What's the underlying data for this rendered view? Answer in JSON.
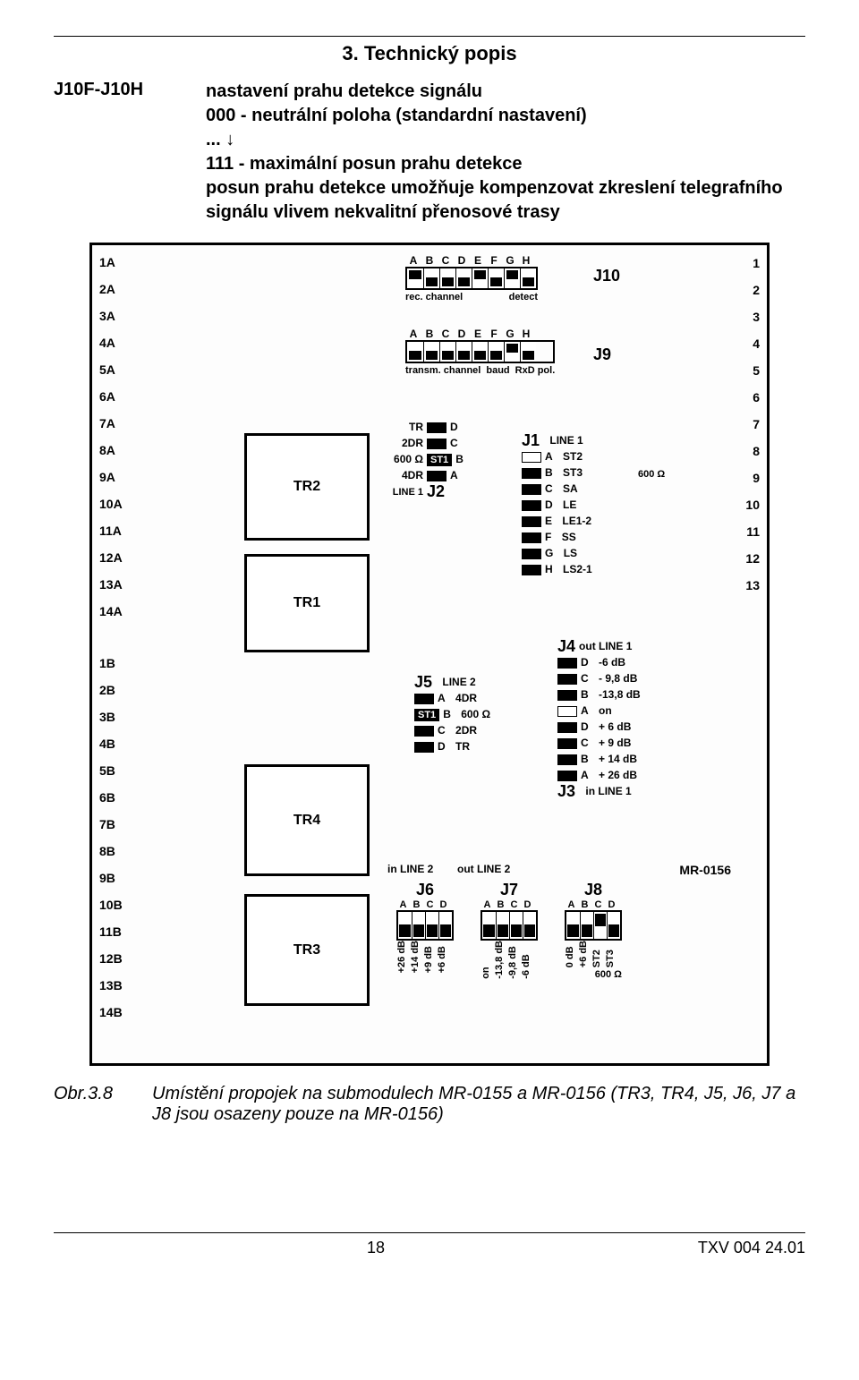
{
  "section_title": "3. Technický popis",
  "para_id": "J10F-J10H",
  "para_lines": [
    "nastavení prahu detekce signálu",
    "000 - neutrální poloha (standardní nastavení)",
    "... ↓",
    "111 - maximální posun prahu detekce",
    "posun prahu detekce umožňuje kompenzovat zkreslení telegrafního signálu vlivem nekvalitní přenosové trasy"
  ],
  "left_labels_A": [
    "1A",
    "2A",
    "3A",
    "4A",
    "5A",
    "6A",
    "7A",
    "8A",
    "9A",
    "10A",
    "11A",
    "12A",
    "13A",
    "14A"
  ],
  "left_labels_B": [
    "1B",
    "2B",
    "3B",
    "4B",
    "5B",
    "6B",
    "7B",
    "8B",
    "9B",
    "10B",
    "11B",
    "12B",
    "13B",
    "14B"
  ],
  "right_labels": [
    "1",
    "2",
    "3",
    "4",
    "5",
    "6",
    "7",
    "8",
    "9",
    "10",
    "11",
    "12",
    "13"
  ],
  "chips": {
    "TR1": "TR1",
    "TR2": "TR2",
    "TR3": "TR3",
    "TR4": "TR4"
  },
  "j10": {
    "letters": [
      "A",
      "B",
      "C",
      "D",
      "E",
      "F",
      "G",
      "H"
    ],
    "states": [
      "on",
      "off",
      "off",
      "off",
      "on",
      "off",
      "on",
      "off"
    ],
    "cap_left": "rec. channel",
    "cap_right": "detect",
    "name": "J10"
  },
  "j9": {
    "letters": [
      "A",
      "B",
      "C",
      "D",
      "E",
      "F",
      "G",
      "H"
    ],
    "states": [
      "off",
      "off",
      "off",
      "off",
      "off",
      "off",
      "on",
      "off"
    ],
    "cap_left": "transm. channel",
    "cap_mid": "baud",
    "cap_right": "RxD pol.",
    "name": "J9"
  },
  "j2": {
    "name": "J2",
    "title": "LINE 1",
    "rows": [
      {
        "left": "TR",
        "letter": "D",
        "pad": "closed"
      },
      {
        "left": "2DR",
        "letter": "C",
        "pad": "closed"
      },
      {
        "left": "600 Ω",
        "letter": "B",
        "pad": "st1"
      },
      {
        "left": "4DR",
        "letter": "A",
        "pad": "closed"
      }
    ]
  },
  "j1": {
    "name": "J1",
    "title": "LINE 1",
    "ohm": "600 Ω",
    "rows": [
      {
        "letter": "A",
        "lbl": "ST2",
        "pad": "open"
      },
      {
        "letter": "B",
        "lbl": "ST3",
        "pad": "closed"
      },
      {
        "letter": "C",
        "lbl": "SA",
        "pad": "closed"
      },
      {
        "letter": "D",
        "lbl": "LE",
        "pad": "closed"
      },
      {
        "letter": "E",
        "lbl": "LE1-2",
        "pad": "closed"
      },
      {
        "letter": "F",
        "lbl": "SS",
        "pad": "closed"
      },
      {
        "letter": "G",
        "lbl": "LS",
        "pad": "closed"
      },
      {
        "letter": "H",
        "lbl": "LS2-1",
        "pad": "closed"
      }
    ]
  },
  "j4_j3": {
    "j4": "J4",
    "j3": "J3",
    "out": "out LINE 1",
    "in": "in LINE 1",
    "rows": [
      {
        "letter": "D",
        "lbl": "-6 dB",
        "pad": "closed"
      },
      {
        "letter": "C",
        "lbl": "- 9,8 dB",
        "pad": "closed"
      },
      {
        "letter": "B",
        "lbl": "-13,8 dB",
        "pad": "closed"
      },
      {
        "letter": "A",
        "lbl": "on",
        "pad": "open"
      },
      {
        "letter": "D",
        "lbl": "+ 6 dB",
        "pad": "closed"
      },
      {
        "letter": "C",
        "lbl": "+ 9 dB",
        "pad": "closed"
      },
      {
        "letter": "B",
        "lbl": "+ 14 dB",
        "pad": "closed"
      },
      {
        "letter": "A",
        "lbl": "+ 26 dB",
        "pad": "closed"
      }
    ]
  },
  "j5": {
    "name": "J5",
    "title": "LINE 2",
    "rows": [
      {
        "letter": "A",
        "lbl": "4DR",
        "pad": "closed"
      },
      {
        "letter": "B",
        "lbl": "600 Ω",
        "pad": "st1"
      },
      {
        "letter": "C",
        "lbl": "2DR",
        "pad": "closed"
      },
      {
        "letter": "D",
        "lbl": "TR",
        "pad": "closed"
      }
    ]
  },
  "bottom": {
    "in": "in LINE 2",
    "out": "out LINE 2",
    "j6": "J6",
    "j7": "J7",
    "j8": "J8",
    "letters": [
      "A",
      "B",
      "C",
      "D"
    ],
    "j6_states": [
      "off",
      "off",
      "off",
      "off"
    ],
    "j7_states": [
      "off",
      "off",
      "off",
      "off"
    ],
    "j8_states": [
      "off",
      "off",
      "on",
      "off"
    ],
    "j6_lbls": [
      "+26 dB",
      "+14 dB",
      "+9 dB",
      "+6 dB"
    ],
    "j7_lbls": [
      "on",
      "-13,8 dB",
      "-9,8 dB",
      "-6 dB"
    ],
    "j8_lbls": [
      "0 dB",
      "+6 dB",
      "ST2",
      "ST3"
    ],
    "ohm": "600 Ω"
  },
  "board_code": "MR-0156",
  "st1": "ST1",
  "figure": {
    "num": "Obr.3.8",
    "text": "Umístění propojek na submodulech MR-0155 a MR-0156 (TR3, TR4, J5, J6, J7 a J8 jsou osazeny pouze na MR-0156)"
  },
  "footer": {
    "page": "18",
    "doc": "TXV 004 24.01"
  }
}
